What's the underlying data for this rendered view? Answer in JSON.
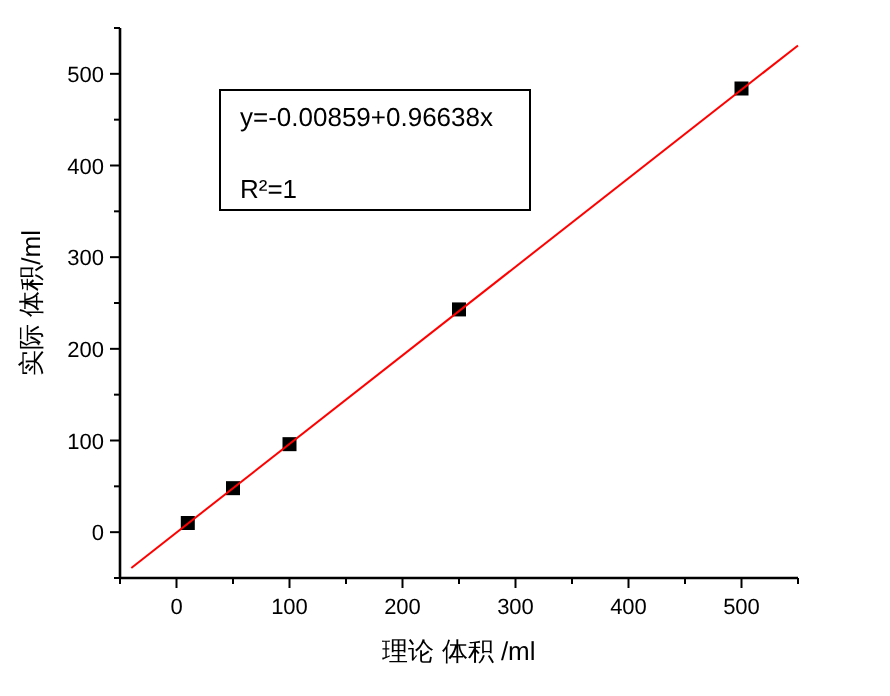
{
  "chart_data": {
    "type": "scatter",
    "xlabel": "理论  体积 /ml",
    "ylabel": "实际 体积/ml",
    "annotations": [
      "y=-0.00859+0.96638x",
      "R²=1"
    ],
    "xlim": [
      -50,
      550
    ],
    "xticks": [
      0,
      100,
      200,
      300,
      400,
      500
    ],
    "ylim": [
      -50,
      550
    ],
    "yticks": [
      0,
      100,
      200,
      300,
      400,
      500
    ],
    "series": [
      {
        "type": "scatter",
        "color": "#000000",
        "marker": "square",
        "x": [
          10,
          50,
          100,
          250,
          500
        ],
        "values": [
          10,
          48,
          96,
          243,
          484
        ]
      },
      {
        "type": "line",
        "color": "#ff0000",
        "marker": "none",
        "line_style": "solid",
        "x": [
          -40,
          550
        ],
        "values": [
          -39,
          531
        ]
      }
    ]
  }
}
